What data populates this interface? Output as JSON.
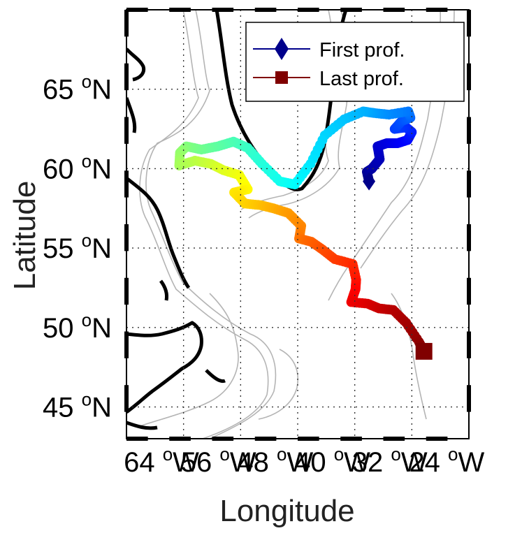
{
  "map": {
    "xlabel": "Longitude",
    "ylabel": "Latitude",
    "lon_range": [
      -64,
      -16
    ],
    "lat_range": [
      43,
      70
    ],
    "lon_ticks": [
      {
        "value": "64",
        "unit": "o",
        "hem": "W"
      },
      {
        "value": "56",
        "unit": "o",
        "hem": "W"
      },
      {
        "value": "48",
        "unit": "o",
        "hem": "W"
      },
      {
        "value": "40",
        "unit": "o",
        "hem": "W"
      },
      {
        "value": "32",
        "unit": "o",
        "hem": "W"
      },
      {
        "value": "24",
        "unit": "o",
        "hem": "W"
      }
    ],
    "lat_ticks": [
      {
        "value": "65",
        "unit": "o",
        "hem": "N"
      },
      {
        "value": "60",
        "unit": "o",
        "hem": "N"
      },
      {
        "value": "55",
        "unit": "o",
        "hem": "N"
      },
      {
        "value": "50",
        "unit": "o",
        "hem": "N"
      },
      {
        "value": "45",
        "unit": "o",
        "hem": "N"
      }
    ],
    "grid": true,
    "legend_position": "top-right",
    "legend": [
      {
        "label": "First prof.",
        "color": "#00008b",
        "marker": "diamond"
      },
      {
        "label": "Last prof.",
        "color": "#800000",
        "marker": "square"
      }
    ],
    "colors": {
      "coastline": "#000000",
      "bathymetry": "#b4b4b4",
      "grid": "#333333",
      "colormap": "jet"
    }
  },
  "chart_data": {
    "type": "scatter",
    "title": "",
    "xlabel": "Longitude",
    "ylabel": "Latitude",
    "xlim": [
      -64,
      -16
    ],
    "ylim": [
      43,
      70
    ],
    "color_encoding": "profile order (jet: dark blue = first, dark red = last)",
    "first_profile": {
      "lon": -30.0,
      "lat": 59.2
    },
    "last_profile": {
      "lon": -22.3,
      "lat": 48.5
    },
    "track": [
      [
        -30.0,
        59.2
      ],
      [
        -30.3,
        59.8
      ],
      [
        -29.6,
        60.0
      ],
      [
        -28.5,
        60.6
      ],
      [
        -28.8,
        61.4
      ],
      [
        -27.5,
        61.6
      ],
      [
        -26.0,
        61.6
      ],
      [
        -24.6,
        61.8
      ],
      [
        -24.0,
        62.3
      ],
      [
        -24.8,
        62.6
      ],
      [
        -26.4,
        62.5
      ],
      [
        -25.4,
        63.0
      ],
      [
        -24.2,
        63.2
      ],
      [
        -24.5,
        63.6
      ],
      [
        -27.2,
        63.4
      ],
      [
        -29.3,
        63.5
      ],
      [
        -30.8,
        63.6
      ],
      [
        -33.5,
        63.1
      ],
      [
        -36.2,
        62.1
      ],
      [
        -38.2,
        60.3
      ],
      [
        -40.4,
        59.0
      ],
      [
        -42.5,
        59.2
      ],
      [
        -45.0,
        60.3
      ],
      [
        -47.0,
        61.3
      ],
      [
        -49.0,
        61.7
      ],
      [
        -51.2,
        61.4
      ],
      [
        -53.5,
        61.2
      ],
      [
        -55.6,
        61.4
      ],
      [
        -56.5,
        61.0
      ],
      [
        -56.6,
        60.2
      ],
      [
        -54.4,
        60.5
      ],
      [
        -52.2,
        60.3
      ],
      [
        -50.4,
        59.9
      ],
      [
        -48.2,
        59.6
      ],
      [
        -47.0,
        58.7
      ],
      [
        -48.9,
        58.5
      ],
      [
        -47.4,
        57.8
      ],
      [
        -45.2,
        57.7
      ],
      [
        -43.4,
        57.5
      ],
      [
        -41.3,
        57.2
      ],
      [
        -39.5,
        56.4
      ],
      [
        -39.8,
        55.6
      ],
      [
        -38.1,
        55.4
      ],
      [
        -36.5,
        54.9
      ],
      [
        -34.8,
        54.3
      ],
      [
        -32.3,
        54.0
      ],
      [
        -31.8,
        53.0
      ],
      [
        -31.9,
        52.4
      ],
      [
        -32.5,
        51.6
      ],
      [
        -30.2,
        51.5
      ],
      [
        -28.6,
        51.2
      ],
      [
        -26.6,
        51.1
      ],
      [
        -24.8,
        50.3
      ],
      [
        -23.0,
        49.1
      ],
      [
        -22.3,
        48.5
      ]
    ]
  }
}
